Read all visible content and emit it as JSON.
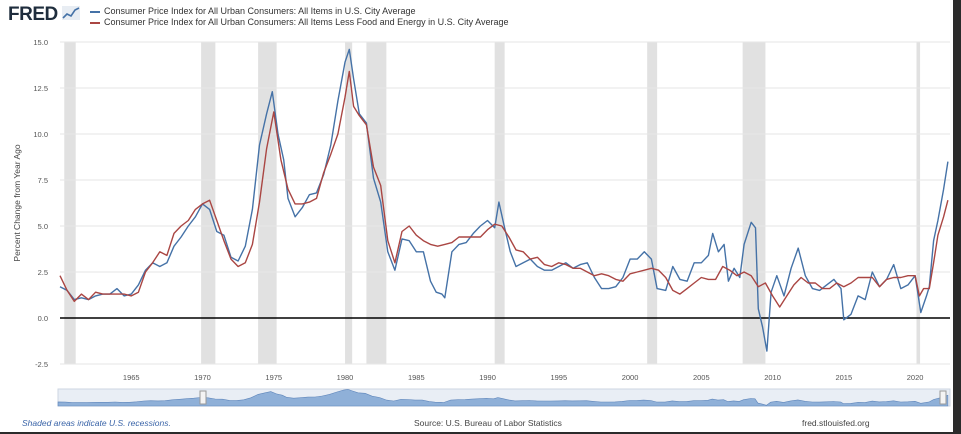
{
  "header": {
    "logo_text": "FRED",
    "logo_icon": "chart-line-icon"
  },
  "colors": {
    "headline": "#4572a7",
    "core": "#aa4643",
    "recession": "#e1e1e1",
    "zero_line": "#000000",
    "navigator_fill": "#8fb0d8"
  },
  "chart_data": {
    "type": "line",
    "ylabel": "Percent Change from Year Ago",
    "xlim": [
      1960.0,
      2022.45
    ],
    "ylim": [
      -2.5,
      15.0
    ],
    "yticks": [
      "15.0",
      "12.5",
      "10.0",
      "7.5",
      "5.0",
      "2.5",
      "0.0",
      "-2.5"
    ],
    "xticks": [
      "1965",
      "1970",
      "1975",
      "1980",
      "1985",
      "1990",
      "1995",
      "2000",
      "2005",
      "2010",
      "2015",
      "2020"
    ],
    "grid": "horizontal",
    "recessions": [
      [
        1960.3,
        1961.1
      ],
      [
        1969.9,
        1970.9
      ],
      [
        1973.9,
        1975.2
      ],
      [
        1980.0,
        1980.5
      ],
      [
        1981.5,
        1982.9
      ],
      [
        1990.5,
        1991.2
      ],
      [
        2001.2,
        2001.9
      ],
      [
        2007.9,
        2009.5
      ],
      [
        2020.1,
        2020.35
      ]
    ],
    "series": [
      {
        "name": "Consumer Price Index for All Urban Consumers: All Items in U.S. City Average",
        "x": [
          1960.0,
          1960.5,
          1961.0,
          1961.5,
          1962.0,
          1962.5,
          1963.0,
          1963.5,
          1964.0,
          1964.5,
          1965.0,
          1965.5,
          1966.0,
          1966.5,
          1967.0,
          1967.5,
          1968.0,
          1968.5,
          1969.0,
          1969.5,
          1970.0,
          1970.5,
          1971.0,
          1971.5,
          1972.0,
          1972.5,
          1973.0,
          1973.5,
          1974.0,
          1974.5,
          1974.9,
          1975.3,
          1975.7,
          1976.0,
          1976.5,
          1977.0,
          1977.5,
          1978.0,
          1978.5,
          1979.0,
          1979.5,
          1980.0,
          1980.3,
          1980.6,
          1981.0,
          1981.5,
          1982.0,
          1982.5,
          1983.0,
          1983.5,
          1984.0,
          1984.5,
          1985.0,
          1985.5,
          1986.0,
          1986.4,
          1986.8,
          1987.0,
          1987.5,
          1988.0,
          1988.5,
          1989.0,
          1989.5,
          1990.0,
          1990.5,
          1990.8,
          1991.2,
          1991.6,
          1992.0,
          1992.5,
          1993.0,
          1993.5,
          1994.0,
          1994.5,
          1995.0,
          1995.5,
          1996.0,
          1996.5,
          1997.0,
          1997.5,
          1998.0,
          1998.5,
          1999.0,
          1999.5,
          2000.0,
          2000.5,
          2001.0,
          2001.5,
          2001.9,
          2002.5,
          2003.0,
          2003.5,
          2004.0,
          2004.5,
          2005.0,
          2005.5,
          2005.8,
          2006.2,
          2006.6,
          2006.9,
          2007.3,
          2007.7,
          2008.0,
          2008.5,
          2008.8,
          2009.0,
          2009.3,
          2009.6,
          2009.9,
          2010.3,
          2010.8,
          2011.3,
          2011.8,
          2012.3,
          2012.8,
          2013.3,
          2013.8,
          2014.3,
          2014.8,
          2015.0,
          2015.5,
          2016.0,
          2016.5,
          2017.0,
          2017.5,
          2018.0,
          2018.5,
          2019.0,
          2019.5,
          2020.0,
          2020.4,
          2020.8,
          2021.0,
          2021.3,
          2021.6,
          2022.0,
          2022.3
        ],
        "values": [
          1.7,
          1.5,
          1.0,
          1.1,
          1.0,
          1.2,
          1.3,
          1.3,
          1.6,
          1.2,
          1.3,
          1.8,
          2.6,
          3.0,
          2.8,
          3.0,
          3.9,
          4.4,
          5.0,
          5.5,
          6.2,
          5.9,
          4.7,
          4.5,
          3.3,
          3.1,
          3.9,
          5.9,
          9.4,
          11.1,
          12.3,
          10.0,
          8.6,
          6.5,
          5.5,
          6.0,
          6.7,
          6.8,
          7.8,
          9.4,
          11.8,
          13.9,
          14.6,
          13.0,
          11.1,
          10.6,
          7.6,
          6.3,
          3.6,
          2.6,
          4.3,
          4.2,
          3.6,
          3.6,
          2.0,
          1.4,
          1.3,
          1.1,
          3.6,
          4.0,
          4.1,
          4.6,
          5.0,
          5.3,
          4.9,
          6.3,
          4.9,
          3.6,
          2.8,
          3.0,
          3.2,
          2.8,
          2.6,
          2.6,
          2.8,
          3.0,
          2.7,
          2.9,
          3.0,
          2.2,
          1.6,
          1.6,
          1.7,
          2.2,
          3.2,
          3.2,
          3.6,
          3.2,
          1.6,
          1.5,
          2.8,
          2.1,
          2.0,
          3.0,
          3.0,
          3.4,
          4.6,
          3.6,
          4.0,
          2.0,
          2.7,
          2.2,
          4.0,
          5.2,
          4.9,
          0.5,
          -0.5,
          -1.8,
          1.4,
          2.3,
          1.2,
          2.7,
          3.8,
          2.3,
          1.6,
          1.5,
          1.8,
          2.1,
          1.6,
          -0.1,
          0.2,
          1.2,
          1.0,
          2.5,
          1.7,
          2.1,
          2.9,
          1.6,
          1.8,
          2.3,
          0.3,
          1.2,
          1.7,
          4.2,
          5.3,
          7.0,
          8.5
        ]
      },
      {
        "name": "Consumer Price Index for All Urban Consumers: All Items Less Food and Energy in U.S. City Average",
        "x": [
          1960.0,
          1960.5,
          1961.0,
          1961.5,
          1962.0,
          1962.5,
          1963.0,
          1963.5,
          1964.0,
          1964.5,
          1965.0,
          1965.5,
          1966.0,
          1966.5,
          1967.0,
          1967.5,
          1968.0,
          1968.5,
          1969.0,
          1969.5,
          1970.0,
          1970.5,
          1971.0,
          1971.5,
          1972.0,
          1972.5,
          1973.0,
          1973.5,
          1974.0,
          1974.5,
          1975.0,
          1975.5,
          1976.0,
          1976.5,
          1977.0,
          1977.5,
          1978.0,
          1978.5,
          1979.0,
          1979.5,
          1980.0,
          1980.3,
          1980.6,
          1981.0,
          1981.5,
          1982.0,
          1982.5,
          1983.0,
          1983.5,
          1984.0,
          1984.5,
          1985.0,
          1985.5,
          1986.0,
          1986.5,
          1987.0,
          1987.5,
          1988.0,
          1988.5,
          1989.0,
          1989.5,
          1990.0,
          1990.5,
          1991.0,
          1991.5,
          1992.0,
          1992.5,
          1993.0,
          1993.5,
          1994.0,
          1994.5,
          1995.0,
          1995.5,
          1996.0,
          1996.5,
          1997.0,
          1997.5,
          1998.0,
          1998.5,
          1999.0,
          1999.5,
          2000.0,
          2000.5,
          2001.0,
          2001.5,
          2002.0,
          2002.5,
          2003.0,
          2003.5,
          2004.0,
          2004.5,
          2005.0,
          2005.5,
          2006.0,
          2006.5,
          2007.0,
          2007.5,
          2008.0,
          2008.5,
          2009.0,
          2009.5,
          2010.0,
          2010.5,
          2011.0,
          2011.5,
          2012.0,
          2012.5,
          2013.0,
          2013.5,
          2014.0,
          2014.5,
          2015.0,
          2015.5,
          2016.0,
          2016.5,
          2017.0,
          2017.5,
          2018.0,
          2018.5,
          2019.0,
          2019.5,
          2020.0,
          2020.3,
          2020.6,
          2021.0,
          2021.3,
          2021.6,
          2022.0,
          2022.3
        ],
        "values": [
          2.3,
          1.5,
          0.9,
          1.3,
          1.0,
          1.4,
          1.3,
          1.3,
          1.3,
          1.3,
          1.2,
          1.4,
          2.5,
          3.0,
          3.6,
          3.4,
          4.6,
          5.0,
          5.3,
          5.9,
          6.2,
          6.4,
          5.3,
          4.2,
          3.2,
          2.8,
          3.0,
          4.0,
          6.3,
          9.2,
          11.2,
          8.6,
          7.0,
          6.2,
          6.2,
          6.3,
          6.5,
          7.9,
          8.9,
          10.0,
          12.0,
          13.4,
          11.5,
          11.0,
          10.5,
          8.2,
          7.2,
          4.2,
          3.0,
          4.7,
          5.0,
          4.5,
          4.2,
          4.0,
          3.9,
          4.0,
          4.1,
          4.4,
          4.4,
          4.4,
          4.4,
          4.8,
          5.1,
          5.0,
          4.4,
          3.7,
          3.6,
          3.2,
          3.3,
          2.9,
          2.8,
          3.0,
          2.9,
          2.7,
          2.7,
          2.5,
          2.3,
          2.4,
          2.3,
          2.1,
          2.0,
          2.4,
          2.5,
          2.6,
          2.7,
          2.6,
          2.2,
          1.5,
          1.3,
          1.6,
          1.9,
          2.2,
          2.1,
          2.1,
          2.8,
          2.6,
          2.3,
          2.5,
          2.3,
          1.7,
          1.9,
          1.2,
          0.6,
          1.2,
          1.8,
          2.2,
          1.9,
          1.9,
          1.6,
          1.6,
          1.9,
          1.7,
          1.9,
          2.2,
          2.2,
          2.2,
          1.7,
          2.1,
          2.2,
          2.2,
          2.3,
          2.3,
          1.2,
          1.6,
          1.6,
          3.0,
          4.5,
          5.5,
          6.4
        ]
      }
    ]
  },
  "footer": {
    "recession_note": "Shaded areas indicate U.S. recessions.",
    "source": "Source: U.S. Bureau of Labor Statistics",
    "site": "fred.stlouisfed.org"
  }
}
